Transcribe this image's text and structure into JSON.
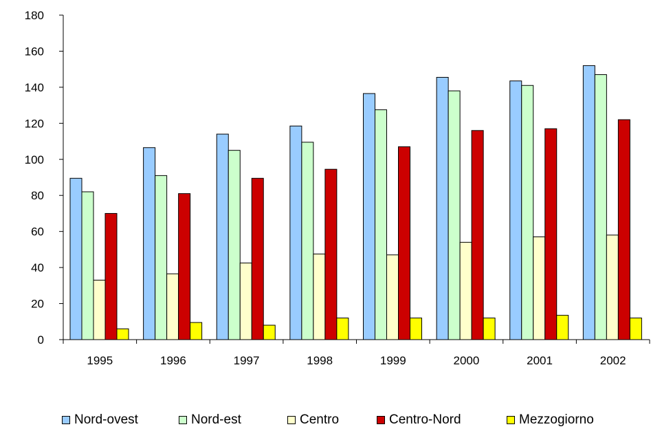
{
  "chart_data": {
    "type": "bar",
    "categories": [
      "1995",
      "1996",
      "1997",
      "1998",
      "1999",
      "2000",
      "2001",
      "2002"
    ],
    "series": [
      {
        "name": "Nord-ovest",
        "color": "#99CCFF",
        "values": [
          89.5,
          106.5,
          114,
          118.5,
          136.5,
          145.5,
          143.5,
          152
        ]
      },
      {
        "name": "Nord-est",
        "color": "#CCFFCC",
        "values": [
          82,
          91,
          105,
          109.5,
          127.5,
          138,
          141,
          147
        ]
      },
      {
        "name": "Centro",
        "color": "#FFFFCC",
        "values": [
          33,
          36.5,
          42.5,
          47.5,
          47,
          54,
          57,
          58
        ]
      },
      {
        "name": "Centro-Nord",
        "color": "#CC0000",
        "values": [
          70,
          81,
          89.5,
          94.5,
          107,
          116,
          117,
          122
        ]
      },
      {
        "name": "Mezzogiorno",
        "color": "#FFFF00",
        "values": [
          6,
          9.5,
          8,
          12,
          12,
          12,
          13.5,
          12
        ]
      }
    ],
    "yticks": [
      "0",
      "20",
      "40",
      "60",
      "80",
      "100",
      "120",
      "140",
      "160",
      "180"
    ],
    "ylim": [
      0,
      180
    ],
    "grid": false,
    "legend_position": "bottom"
  }
}
